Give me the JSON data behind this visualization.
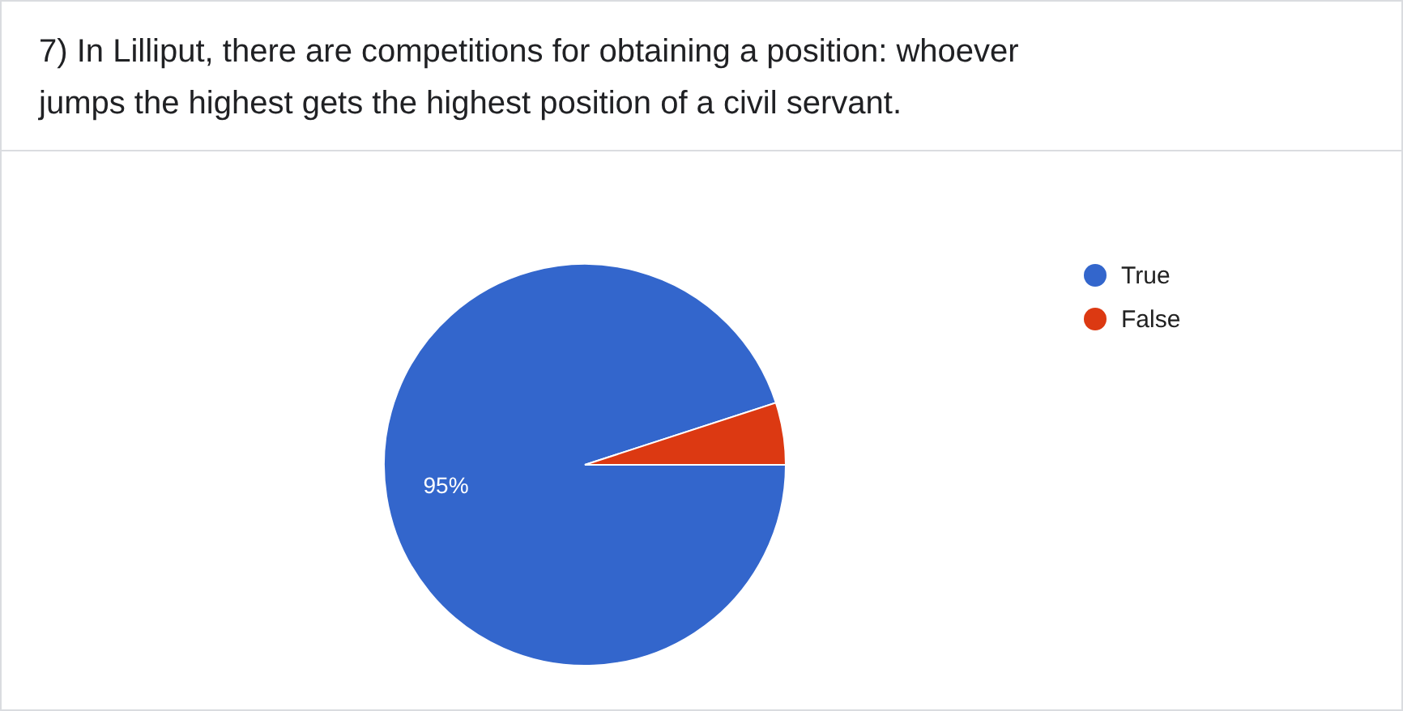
{
  "chart_data": {
    "type": "pie",
    "title": "7)  In Lilliput, there are competitions for obtaining a position: whoever jumps the highest gets the highest position of a civil servant.",
    "categories": [
      "True",
      "False"
    ],
    "values": [
      95,
      5
    ],
    "colors": [
      "#3366cc",
      "#dc3912"
    ],
    "value_labels": [
      "95%",
      null
    ],
    "legend": "right"
  }
}
